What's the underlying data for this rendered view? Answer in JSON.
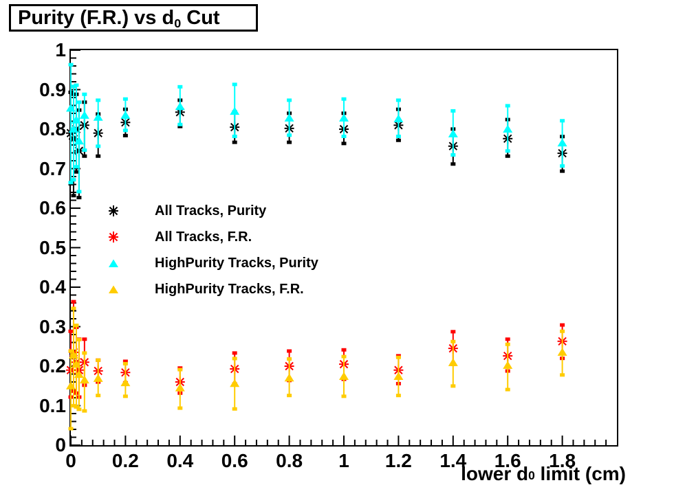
{
  "title": {
    "prefix": "Purity (F.R.) vs d",
    "sub": "0",
    "suffix": " Cut"
  },
  "axes": {
    "x": {
      "label_prefix": "lower d",
      "label_sub": "0",
      "label_suffix": " limit (cm)",
      "min": 0,
      "max": 2,
      "tick_values": [
        0,
        0.2,
        0.4,
        0.6,
        0.8,
        1.0,
        1.2,
        1.4,
        1.6,
        1.8
      ],
      "tick_labels": [
        "0",
        "0.2",
        "0.4",
        "0.6",
        "0.8",
        "1",
        "1.2",
        "1.4",
        "1.6",
        "1.8"
      ],
      "minor_step": 0.04
    },
    "y": {
      "min": 0,
      "max": 1,
      "tick_values": [
        0,
        0.1,
        0.2,
        0.3,
        0.4,
        0.5,
        0.6,
        0.7,
        0.8,
        0.9,
        1.0
      ],
      "tick_labels": [
        "0",
        "0.1",
        "0.2",
        "0.3",
        "0.4",
        "0.5",
        "0.6",
        "0.7",
        "0.8",
        "0.9",
        "1"
      ],
      "minor_step": 0.02
    }
  },
  "legend": [
    {
      "label": "All Tracks, Purity",
      "marker": "star",
      "color": "#000000"
    },
    {
      "label": "All Tracks, F.R.",
      "marker": "star",
      "color": "#ff0000"
    },
    {
      "label": "HighPurity Tracks, Purity",
      "marker": "triangle",
      "color": "#00ffff"
    },
    {
      "label": "HighPurity Tracks, F.R.",
      "marker": "triangle",
      "color": "#ffcc00"
    }
  ],
  "colors": {
    "black": "#000000",
    "red": "#ff0000",
    "cyan": "#00ffff",
    "orange": "#ffcc00"
  },
  "chart_data": {
    "type": "scatter",
    "title": "Purity (F.R.) vs d0 Cut",
    "xlabel": "lower d0 limit (cm)",
    "ylabel": "",
    "xlim": [
      0,
      2
    ],
    "ylim": [
      0,
      1
    ],
    "grid": false,
    "legend_position": "upper-left-inside",
    "x": [
      0,
      0.01,
      0.02,
      0.03,
      0.05,
      0.1,
      0.2,
      0.4,
      0.6,
      0.8,
      1.0,
      1.2,
      1.4,
      1.6,
      1.8
    ],
    "series": [
      {
        "name": "All Tracks, Purity",
        "marker": "star",
        "color": "#000000",
        "values": [
          0.79,
          0.775,
          0.8,
          0.745,
          0.81,
          0.79,
          0.817,
          0.843,
          0.805,
          0.802,
          0.8,
          0.81,
          0.757,
          0.776,
          0.739
        ],
        "err_up": [
          0.105,
          0.115,
          0.09,
          0.105,
          0.06,
          0.05,
          0.035,
          0.032,
          0.04,
          0.04,
          0.042,
          0.042,
          0.045,
          0.05,
          0.044
        ],
        "err_down": [
          0.13,
          0.145,
          0.11,
          0.12,
          0.08,
          0.06,
          0.035,
          0.038,
          0.04,
          0.037,
          0.038,
          0.04,
          0.047,
          0.046,
          0.047
        ]
      },
      {
        "name": "All Tracks, F.R.",
        "marker": "star",
        "color": "#ff0000",
        "values": [
          0.19,
          0.235,
          0.21,
          0.19,
          0.21,
          0.188,
          0.184,
          0.16,
          0.193,
          0.2,
          0.205,
          0.19,
          0.245,
          0.226,
          0.263
        ],
        "err_up": [
          0.1,
          0.13,
          0.09,
          0.08,
          0.06,
          0.029,
          0.03,
          0.037,
          0.042,
          0.04,
          0.038,
          0.038,
          0.044,
          0.044,
          0.043
        ],
        "err_down": [
          0.07,
          0.1,
          0.08,
          0.07,
          0.06,
          0.03,
          0.028,
          0.03,
          0.04,
          0.038,
          0.04,
          0.036,
          0.042,
          0.04,
          0.045
        ]
      },
      {
        "name": "HighPurity Tracks, Purity",
        "marker": "triangle",
        "color": "#00ffff",
        "values": [
          0.853,
          0.8,
          0.823,
          0.77,
          0.835,
          0.83,
          0.835,
          0.857,
          0.845,
          0.828,
          0.828,
          0.826,
          0.788,
          0.8,
          0.765
        ],
        "err_up": [
          0.112,
          0.11,
          0.09,
          0.1,
          0.055,
          0.045,
          0.043,
          0.052,
          0.07,
          0.047,
          0.05,
          0.049,
          0.06,
          0.061,
          0.058
        ],
        "err_down": [
          0.19,
          0.13,
          0.12,
          0.13,
          0.09,
          0.075,
          0.04,
          0.047,
          0.065,
          0.045,
          0.048,
          0.046,
          0.055,
          0.057,
          0.06
        ]
      },
      {
        "name": "HighPurity Tracks, F.R.",
        "marker": "triangle",
        "color": "#ffcc00",
        "values": [
          0.15,
          0.228,
          0.205,
          0.179,
          0.165,
          0.169,
          0.158,
          0.145,
          0.156,
          0.17,
          0.174,
          0.174,
          0.209,
          0.202,
          0.235
        ],
        "err_up": [
          0.09,
          0.12,
          0.1,
          0.09,
          0.07,
          0.048,
          0.05,
          0.048,
          0.065,
          0.05,
          0.052,
          0.05,
          0.055,
          0.055,
          0.055
        ],
        "err_down": [
          0.11,
          0.13,
          0.11,
          0.09,
          0.08,
          0.045,
          0.036,
          0.053,
          0.066,
          0.046,
          0.052,
          0.05,
          0.061,
          0.063,
          0.059
        ]
      }
    ]
  }
}
